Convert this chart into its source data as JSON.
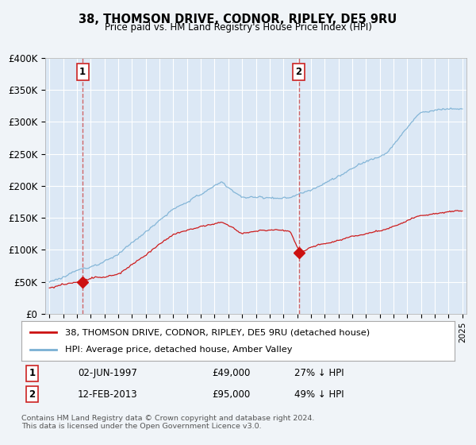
{
  "title": "38, THOMSON DRIVE, CODNOR, RIPLEY, DE5 9RU",
  "subtitle": "Price paid vs. HM Land Registry's House Price Index (HPI)",
  "ylim": [
    0,
    400000
  ],
  "yticks": [
    0,
    50000,
    100000,
    150000,
    200000,
    250000,
    300000,
    350000,
    400000
  ],
  "ytick_labels": [
    "£0",
    "£50K",
    "£100K",
    "£150K",
    "£200K",
    "£250K",
    "£300K",
    "£350K",
    "£400K"
  ],
  "hpi_color": "#7ab0d4",
  "price_color": "#cc1111",
  "vline_color": "#cc4444",
  "annotation_box_color": "#cc2222",
  "bg_color": "#f0f4f8",
  "plot_bg_color": "#dce8f5",
  "grid_color": "#ffffff",
  "legend_label_price": "38, THOMSON DRIVE, CODNOR, RIPLEY, DE5 9RU (detached house)",
  "legend_label_hpi": "HPI: Average price, detached house, Amber Valley",
  "note1_date": "02-JUN-1997",
  "note1_price": "£49,000",
  "note1_hpi": "27% ↓ HPI",
  "note2_date": "12-FEB-2013",
  "note2_price": "£95,000",
  "note2_hpi": "49% ↓ HPI",
  "footnote": "Contains HM Land Registry data © Crown copyright and database right 2024.\nThis data is licensed under the Open Government Licence v3.0.",
  "sale1_year": 1997.42,
  "sale1_price": 49000,
  "sale2_year": 2013.12,
  "sale2_price": 95000,
  "xlim_left": 1994.7,
  "xlim_right": 2025.3
}
